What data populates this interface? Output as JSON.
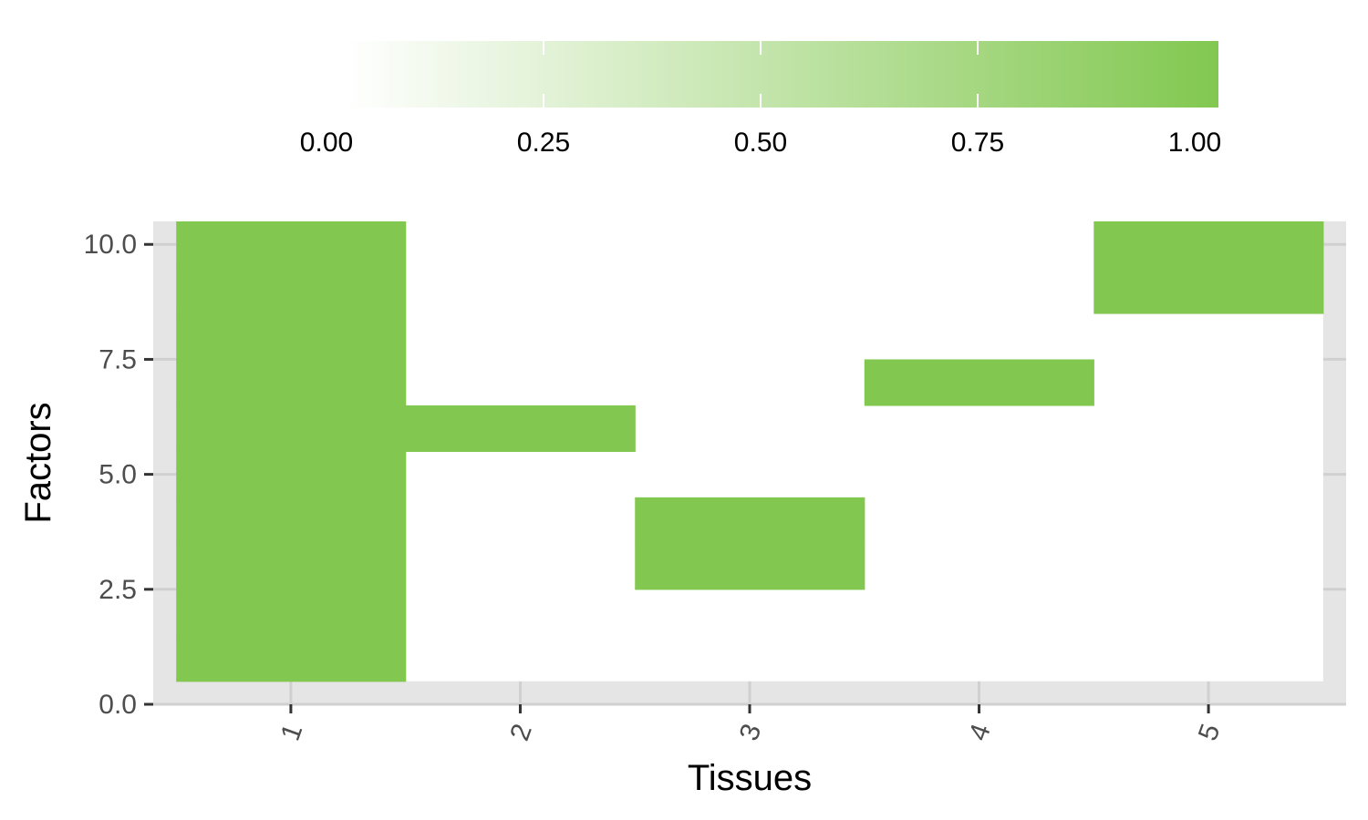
{
  "chart_data": {
    "type": "heatmap",
    "xlabel": "Tissues",
    "ylabel": "Factors",
    "x_ticks": [
      "1",
      "2",
      "3",
      "4",
      "5"
    ],
    "y_ticks": [
      "0.0",
      "2.5",
      "5.0",
      "7.5",
      "10.0"
    ],
    "xlim": [
      0.4,
      5.6
    ],
    "ylim": [
      0,
      10.5
    ],
    "grid": true,
    "legend": {
      "position": "top",
      "ticks": [
        "0.00",
        "0.25",
        "0.50",
        "0.75",
        "1.00"
      ],
      "range": [
        0,
        1
      ],
      "low_color": "#ffffff",
      "high_color": "#82c850"
    },
    "cells": [
      {
        "tissue": 1,
        "factors": [
          1,
          2,
          3,
          4,
          5,
          6,
          7,
          8,
          9,
          10
        ],
        "value": 1
      },
      {
        "tissue": 2,
        "factors": [
          6
        ],
        "value": 1
      },
      {
        "tissue": 3,
        "factors": [
          3,
          4
        ],
        "value": 1
      },
      {
        "tissue": 4,
        "factors": [
          7
        ],
        "value": 1
      },
      {
        "tissue": 5,
        "factors": [
          9,
          10
        ],
        "value": 1
      }
    ],
    "colors": {
      "panel": "#e5e5e5",
      "tile_background": "#ffffff",
      "fill": "#82c850",
      "grid": "#d0d0d0"
    }
  }
}
